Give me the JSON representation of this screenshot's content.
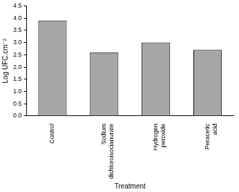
{
  "chart_data": {
    "type": "bar",
    "x_label": "Treatment",
    "y_label": "Log UFC.cm⁻²",
    "categories": [
      "Control",
      "Sodium dichloroisocianurate",
      "Hydrogen peroxide",
      "Peracetic acid"
    ],
    "values": [
      3.9,
      2.6,
      3.0,
      2.7
    ],
    "color": "#a6a6a6",
    "ylim": [
      0,
      4.5
    ],
    "yticks": [
      {
        "value": 0,
        "label": "0.0"
      },
      0.5,
      {
        "value": 1,
        "label": "1.0"
      },
      1.5,
      {
        "value": 2,
        "label": "2.0"
      },
      2.5,
      {
        "value": 3,
        "label": "3.0"
      },
      3.5,
      {
        "value": 4,
        "label": "4.0"
      },
      4.5
    ],
    "grid": false
  }
}
